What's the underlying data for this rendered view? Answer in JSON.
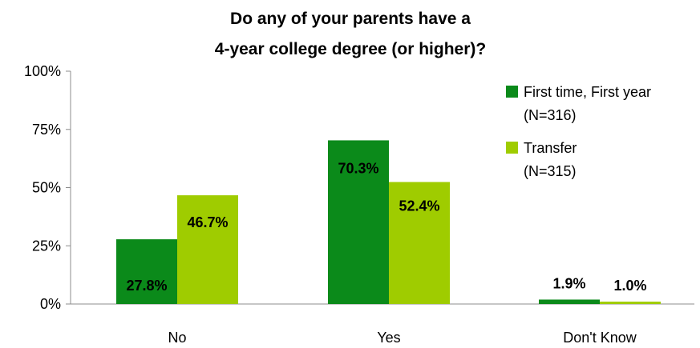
{
  "chart_data": {
    "type": "bar",
    "title": [
      "Do any of your parents have a",
      "4-year college degree (or higher)?"
    ],
    "categories": [
      "No",
      "Yes",
      "Don't Know"
    ],
    "series": [
      {
        "name": [
          "First time, First year",
          "(N=316)"
        ],
        "values": [
          27.8,
          70.3,
          1.9
        ],
        "labels": [
          "27.8%",
          "70.3%",
          "1.9%"
        ],
        "color": "#0b8a1a"
      },
      {
        "name": [
          "Transfer",
          "(N=315)"
        ],
        "values": [
          46.7,
          52.4,
          1.0
        ],
        "labels": [
          "46.7%",
          "52.4%",
          "1.0%"
        ],
        "color": "#9fcc00"
      }
    ],
    "ylim": [
      0,
      100
    ],
    "yticks": [
      "0%",
      "25%",
      "50%",
      "75%",
      "100%"
    ],
    "ytick_values": [
      0,
      25,
      50,
      75,
      100
    ],
    "grid": false,
    "legend": "top-right"
  }
}
